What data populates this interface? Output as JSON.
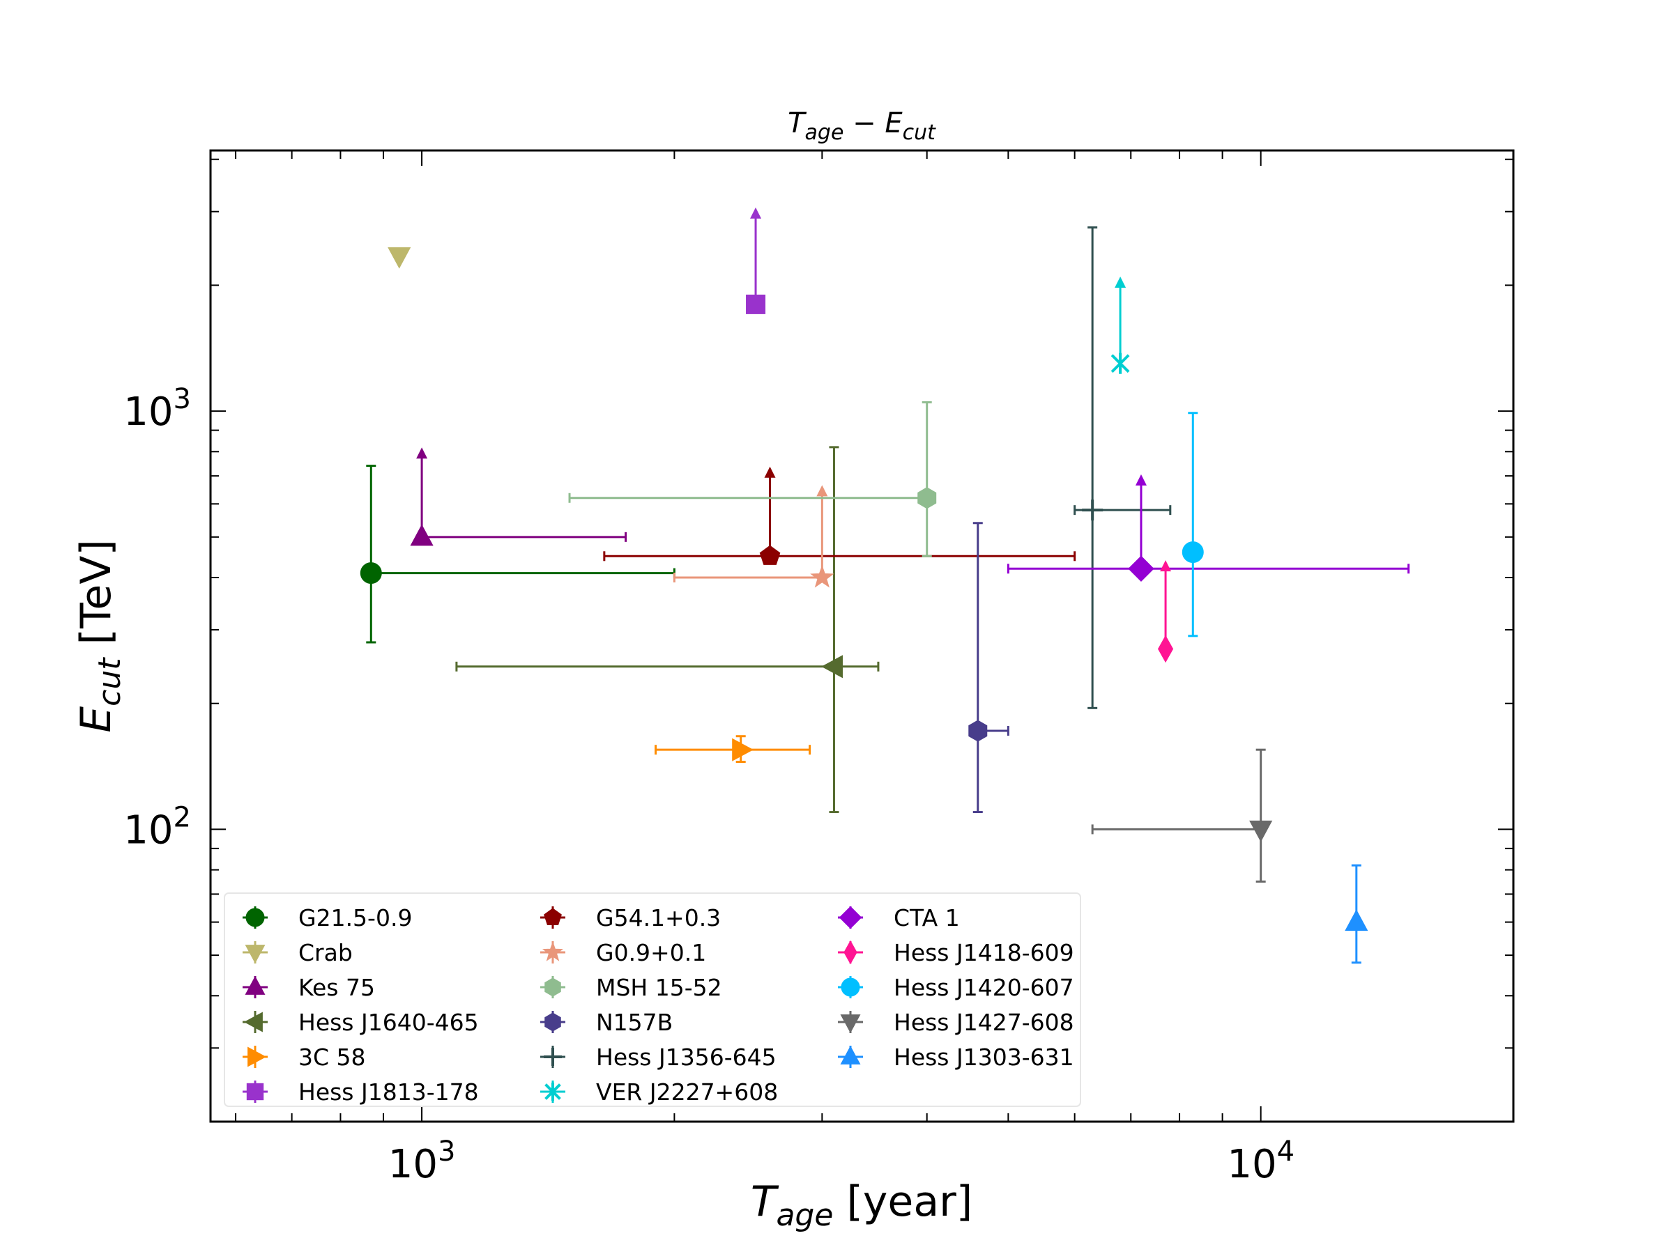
{
  "chart_data": {
    "type": "scatter",
    "title": "T_age – E_cut",
    "title_parts": {
      "main1": "T",
      "sub1": "age",
      "op": " − ",
      "main2": "E",
      "sub2": "cut"
    },
    "xlabel": "T_age [year]",
    "xlabel_parts": {
      "main": "T",
      "sub": "age",
      "unit": " [year]"
    },
    "ylabel": "E_cut [TeV]",
    "ylabel_parts": {
      "main": "E",
      "sub": "cut",
      "unit": " [TeV]"
    },
    "xscale": "log",
    "yscale": "log",
    "xlim": [
      560,
      20000
    ],
    "ylim": [
      20,
      4200
    ],
    "xticks": [
      {
        "value": 1000,
        "base": "10",
        "exp": "3"
      },
      {
        "value": 10000,
        "base": "10",
        "exp": "4"
      }
    ],
    "yticks": [
      {
        "value": 100,
        "base": "10",
        "exp": "2"
      },
      {
        "value": 1000,
        "base": "10",
        "exp": "3"
      }
    ],
    "grid": false,
    "legend": {
      "position": "lower-left",
      "columns": 3
    },
    "series": [
      {
        "name": "G21.5-0.9",
        "color": "#006400",
        "marker": "circle",
        "x": 870,
        "y": 410,
        "xerr": [
          870,
          2000
        ],
        "yerr": [
          280,
          740
        ]
      },
      {
        "name": "Crab",
        "color": "#bdb76b",
        "marker": "triangle-down",
        "x": 940,
        "y": 2350
      },
      {
        "name": "Kes 75",
        "color": "#800080",
        "marker": "triangle-up",
        "x": 1000,
        "y": 500,
        "xerr": [
          1000,
          1750
        ],
        "ylower_limit": 800
      },
      {
        "name": "Hess J1640-465",
        "color": "#556b2f",
        "marker": "triangle-left",
        "x": 3100,
        "y": 245,
        "xerr": [
          1100,
          3500
        ],
        "yerr": [
          110,
          820
        ]
      },
      {
        "name": "3C 58",
        "color": "#ff8c00",
        "marker": "triangle-right",
        "x": 2400,
        "y": 155,
        "xerr": [
          1900,
          2900
        ],
        "yerr": [
          145,
          167
        ]
      },
      {
        "name": "Hess J1813-178",
        "color": "#9932cc",
        "marker": "square",
        "x": 2500,
        "y": 1800,
        "ylower_limit": 3000
      },
      {
        "name": "G54.1+0.3",
        "color": "#8b0000",
        "marker": "pentagon",
        "x": 2600,
        "y": 450,
        "xerr": [
          1650,
          6000
        ],
        "ylower_limit": 720
      },
      {
        "name": "G0.9+0.1",
        "color": "#e9967a",
        "marker": "star",
        "x": 3000,
        "y": 400,
        "xerr": [
          2000,
          3000
        ],
        "ylower_limit": 650
      },
      {
        "name": "MSH 15-52",
        "color": "#8fbc8f",
        "marker": "hexagon",
        "x": 4000,
        "y": 620,
        "xerr": [
          1500,
          4000
        ],
        "yerr": [
          450,
          1050
        ]
      },
      {
        "name": "N157B",
        "color": "#483d8b",
        "marker": "hexagon",
        "x": 4600,
        "y": 172,
        "xerr": [
          4600,
          5000
        ],
        "yerr": [
          110,
          540
        ]
      },
      {
        "name": "Hess J1356-645",
        "color": "#2f4f4f",
        "marker": "plus",
        "x": 6300,
        "y": 580,
        "xerr": [
          6000,
          7800
        ],
        "yerr": [
          195,
          2750
        ]
      },
      {
        "name": "VER J2227+608",
        "color": "#00ced1",
        "marker": "x",
        "x": 6800,
        "y": 1300,
        "ylower_limit": 2050
      },
      {
        "name": "CTA 1",
        "color": "#9400d3",
        "marker": "diamond",
        "x": 7200,
        "y": 420,
        "xerr": [
          5000,
          15000
        ],
        "ylower_limit": 690
      },
      {
        "name": "Hess J1418-609",
        "color": "#ff1493",
        "marker": "thin-diamond",
        "x": 7700,
        "y": 270,
        "ylower_limit": 430
      },
      {
        "name": "Hess J1420-607",
        "color": "#00bfff",
        "marker": "circle",
        "x": 8300,
        "y": 460,
        "yerr": [
          290,
          990
        ]
      },
      {
        "name": "Hess J1427-608",
        "color": "#696969",
        "marker": "triangle-down",
        "x": 10000,
        "y": 100,
        "xerr": [
          6300,
          10000
        ],
        "yerr": [
          75,
          155
        ]
      },
      {
        "name": "Hess J1303-631",
        "color": "#1e90ff",
        "marker": "triangle-up",
        "x": 13000,
        "y": 60,
        "yerr": [
          48,
          82
        ]
      }
    ]
  }
}
